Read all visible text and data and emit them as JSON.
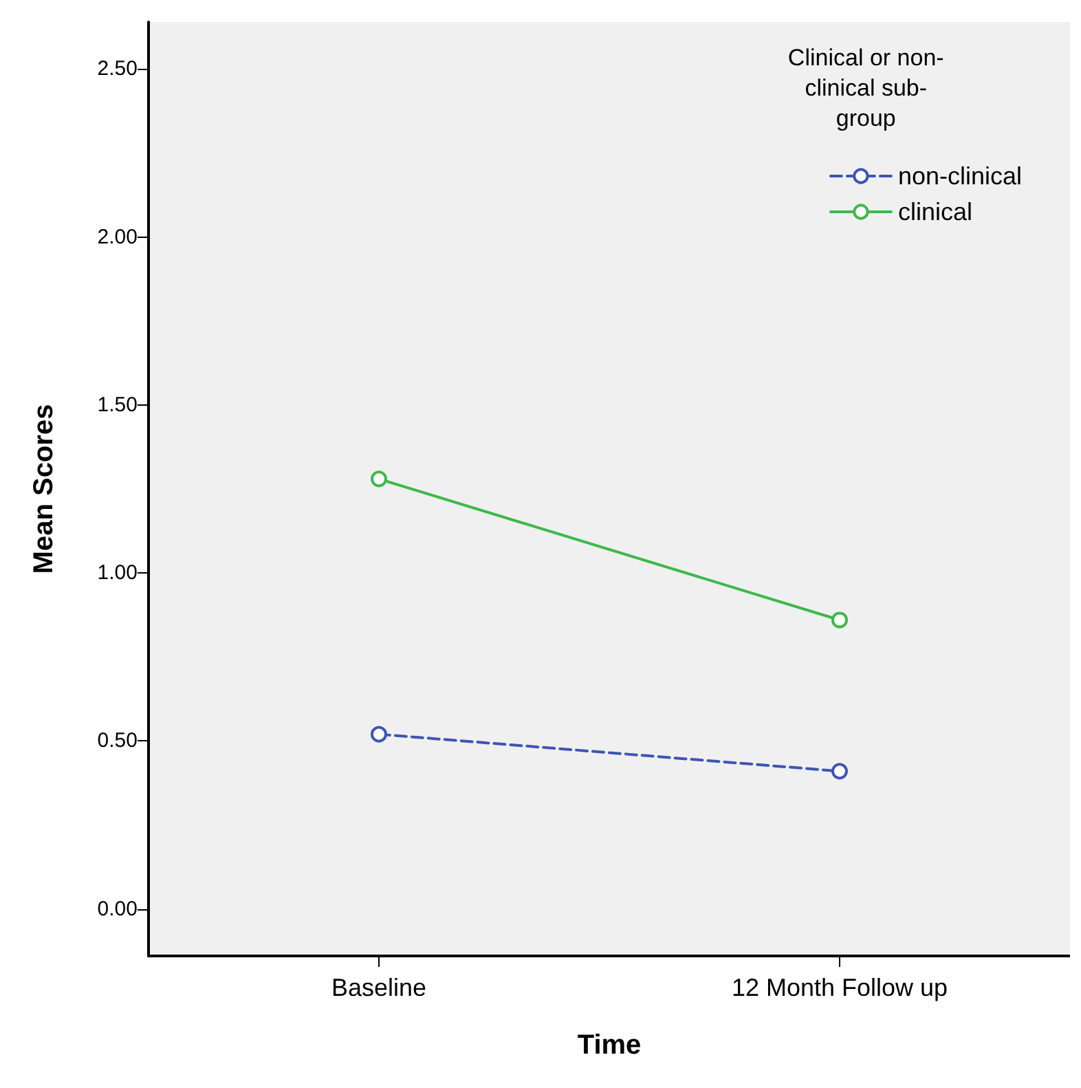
{
  "chart_data": {
    "type": "line",
    "xlabel": "Time",
    "ylabel": "Mean Scores",
    "legend_title": "Clinical or non-\nclinical sub-\ngroup",
    "categories": [
      "Baseline",
      "12 Month Follow up"
    ],
    "series": [
      {
        "name": "non-clinical",
        "color": "#3d55b5",
        "values": [
          0.52,
          0.41
        ],
        "line_style": "dashed"
      },
      {
        "name": "clinical",
        "color": "#3cb94a",
        "values": [
          1.28,
          0.86
        ],
        "line_style": "solid"
      }
    ],
    "ylim": [
      -0.14,
      2.64
    ],
    "yticks": [
      {
        "value": 0,
        "label": "0.00"
      },
      {
        "value": 0.5,
        "label": "0.50"
      },
      {
        "value": 1,
        "label": "1.00"
      },
      {
        "value": 1.5,
        "label": "1.50"
      },
      {
        "value": 2,
        "label": "2.00"
      },
      {
        "value": 2.5,
        "label": "2.50"
      }
    ],
    "grid": false,
    "legend": "top right",
    "marker": "circle"
  }
}
